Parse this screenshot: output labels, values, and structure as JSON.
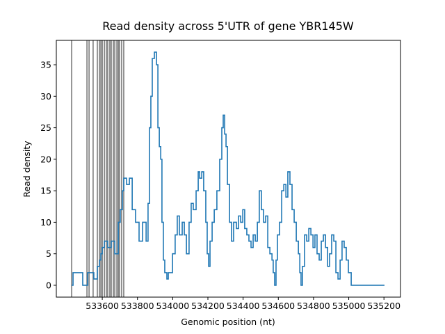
{
  "chart_data": {
    "type": "line",
    "title": "Read density across 5'UTR of gene YBR145W",
    "xlabel": "Genomic position (nt)",
    "ylabel": "Read density",
    "xlim": [
      533339,
      535294
    ],
    "ylim": [
      -1.88,
      38.87
    ],
    "xticks": [
      533600,
      533800,
      534000,
      534200,
      534400,
      534600,
      534800,
      535000,
      535200
    ],
    "yticks": [
      0,
      5,
      10,
      15,
      20,
      25,
      30,
      35
    ],
    "step": true,
    "vline_color": "#000000",
    "vlines": [
      533426,
      533513,
      533525,
      533548,
      533572,
      533584,
      533592,
      533600,
      533612,
      533623,
      533631,
      533643,
      533651,
      533663,
      533671,
      533683,
      533691,
      533698,
      533710,
      533722
    ],
    "series": [
      {
        "color": "#1f77b4",
        "x": [
          533426,
          533434,
          533485,
          533489,
          533513,
          533517,
          533548,
          533552,
          533572,
          533584,
          533592,
          533600,
          533612,
          533631,
          533651,
          533671,
          533691,
          533702,
          533714,
          533722,
          533738,
          533754,
          533770,
          533789,
          533809,
          533829,
          533849,
          533860,
          533868,
          533876,
          533884,
          533896,
          533908,
          533916,
          533924,
          533932,
          533939,
          533947,
          533955,
          533967,
          533975,
          533999,
          534014,
          534026,
          534038,
          534054,
          534066,
          534078,
          534093,
          534105,
          534117,
          534133,
          534145,
          534153,
          534165,
          534176,
          534188,
          534196,
          534204,
          534212,
          534224,
          534236,
          534251,
          534267,
          534279,
          534287,
          534295,
          534303,
          534311,
          534323,
          534334,
          534346,
          534362,
          534374,
          534386,
          534398,
          534409,
          534421,
          534433,
          534445,
          534457,
          534469,
          534481,
          534492,
          534504,
          534516,
          534528,
          534540,
          534552,
          534564,
          534571,
          534579,
          534587,
          534595,
          534607,
          534619,
          534631,
          534643,
          534654,
          534666,
          534678,
          534690,
          534702,
          534714,
          534722,
          534729,
          534737,
          534749,
          534761,
          534773,
          534785,
          534797,
          534808,
          534820,
          534832,
          534844,
          534856,
          534868,
          534880,
          534891,
          534903,
          534915,
          534927,
          534939,
          534951,
          534962,
          534974,
          534986,
          534998,
          535014,
          535203
        ],
        "values": [
          0,
          2,
          2,
          0,
          0,
          2,
          2,
          1,
          3,
          4,
          5,
          6,
          7,
          6,
          7,
          5,
          10,
          12,
          15,
          17,
          16,
          17,
          12,
          10,
          7,
          10,
          7,
          13,
          25,
          30,
          36,
          37,
          35,
          25,
          22,
          20,
          10,
          4,
          2,
          1,
          2,
          5,
          8,
          11,
          8,
          10,
          8,
          5,
          10,
          13,
          12,
          15,
          18,
          17,
          18,
          15,
          10,
          5,
          3,
          7,
          10,
          12,
          15,
          20,
          25,
          27,
          24,
          22,
          16,
          10,
          7,
          10,
          9,
          11,
          10,
          12,
          9,
          8,
          7,
          6,
          8,
          7,
          10,
          15,
          12,
          10,
          11,
          6,
          5,
          4,
          2,
          0,
          4,
          8,
          10,
          15,
          16,
          14,
          18,
          16,
          12,
          10,
          7,
          5,
          2,
          0,
          3,
          8,
          7,
          9,
          8,
          6,
          8,
          5,
          4,
          7,
          8,
          6,
          3,
          5,
          8,
          7,
          2,
          1,
          4,
          7,
          6,
          4,
          2,
          0,
          0
        ]
      }
    ]
  }
}
